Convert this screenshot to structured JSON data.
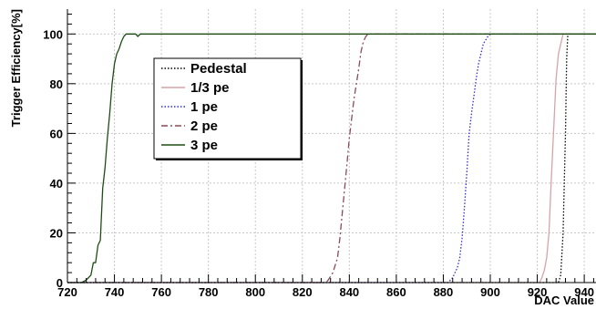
{
  "chart_data": {
    "type": "line",
    "title": "",
    "xlabel": "DAC Value",
    "ylabel": "Trigger Efficiency[%]",
    "xlim": [
      720,
      945
    ],
    "ylim": [
      0,
      110
    ],
    "x_ticks": [
      720,
      740,
      760,
      780,
      800,
      820,
      840,
      860,
      880,
      900,
      920,
      940
    ],
    "y_ticks": [
      0,
      20,
      40,
      60,
      80,
      100
    ],
    "grid": true,
    "legend_position": "upper-left",
    "series": [
      {
        "name": "Pedestal",
        "color": "#000000",
        "dash": "1.5,2",
        "points": [
          [
            720,
            0
          ],
          [
            929,
            0
          ],
          [
            930,
            3
          ],
          [
            931,
            20
          ],
          [
            932,
            60
          ],
          [
            932.5,
            90
          ],
          [
            933,
            100
          ],
          [
            945,
            100
          ]
        ]
      },
      {
        "name": "1/3 pe",
        "color": "#d7a3a8",
        "dash": "",
        "points": [
          [
            720,
            0
          ],
          [
            921,
            0
          ],
          [
            922,
            2
          ],
          [
            923,
            5
          ],
          [
            924,
            10
          ],
          [
            925,
            20
          ],
          [
            926,
            42
          ],
          [
            927,
            62
          ],
          [
            928,
            82
          ],
          [
            929,
            92
          ],
          [
            930,
            96
          ],
          [
            931,
            100
          ],
          [
            945,
            100
          ]
        ]
      },
      {
        "name": "1 pe",
        "color": "#2f2fd0",
        "dash": "1.5,2",
        "points": [
          [
            720,
            0
          ],
          [
            882,
            0
          ],
          [
            883,
            1
          ],
          [
            884,
            2
          ],
          [
            885,
            4
          ],
          [
            886,
            6
          ],
          [
            887,
            10
          ],
          [
            888,
            18
          ],
          [
            889,
            30
          ],
          [
            890,
            44
          ],
          [
            891,
            60
          ],
          [
            892,
            68
          ],
          [
            893,
            75
          ],
          [
            894,
            82
          ],
          [
            895,
            88
          ],
          [
            896,
            92
          ],
          [
            897,
            96
          ],
          [
            899,
            99
          ],
          [
            900,
            100
          ],
          [
            945,
            100
          ]
        ]
      },
      {
        "name": "2 pe",
        "color": "#8b4b57",
        "dash": "7,3,2,3",
        "points": [
          [
            720,
            0
          ],
          [
            830,
            0
          ],
          [
            831,
            1
          ],
          [
            833,
            4
          ],
          [
            835,
            10
          ],
          [
            836,
            18
          ],
          [
            837,
            28
          ],
          [
            838,
            38
          ],
          [
            839,
            48
          ],
          [
            840,
            58
          ],
          [
            841,
            66
          ],
          [
            842,
            74
          ],
          [
            843,
            80
          ],
          [
            844,
            86
          ],
          [
            845,
            93
          ],
          [
            846,
            97
          ],
          [
            847,
            99
          ],
          [
            848,
            100
          ],
          [
            945,
            100
          ]
        ]
      },
      {
        "name": "3 pe",
        "color": "#1e4d14",
        "dash": "",
        "points": [
          [
            720,
            0
          ],
          [
            726,
            0
          ],
          [
            728,
            1
          ],
          [
            730,
            3
          ],
          [
            731,
            8
          ],
          [
            732,
            8
          ],
          [
            733,
            15
          ],
          [
            734,
            17
          ],
          [
            735,
            38
          ],
          [
            736,
            46
          ],
          [
            737,
            58
          ],
          [
            738,
            68
          ],
          [
            739,
            80
          ],
          [
            740,
            88
          ],
          [
            741,
            92
          ],
          [
            742,
            94
          ],
          [
            743,
            97
          ],
          [
            744,
            99
          ],
          [
            745,
            100
          ],
          [
            749,
            100
          ],
          [
            750,
            99
          ],
          [
            751,
            100
          ],
          [
            945,
            100
          ]
        ]
      }
    ]
  }
}
